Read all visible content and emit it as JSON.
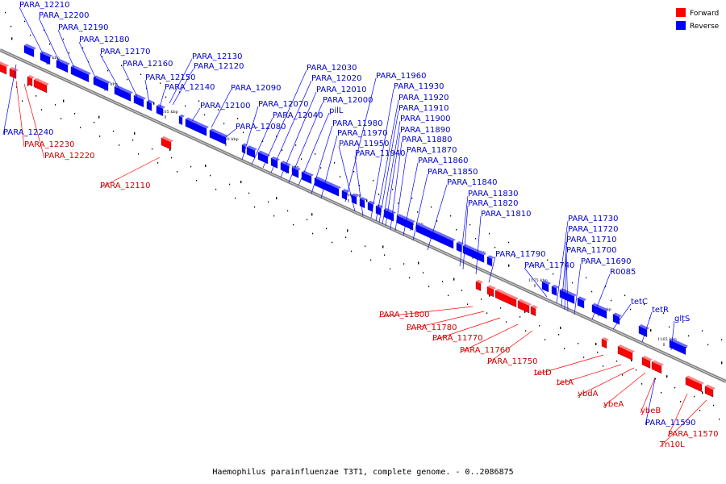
{
  "caption": "Haemophilus parainfluenzae T3T1, complete genome. - 0..2086875",
  "legend": [
    {
      "label": "Forward",
      "color": "#ff0000"
    },
    {
      "label": "Reverse",
      "color": "#0000ff"
    }
  ],
  "colors": {
    "forward": "#ff0000",
    "reverse": "#0000ff",
    "forward_label": "#cc0000",
    "reverse_label": "#0000cc",
    "backbone": "#808080"
  },
  "kbp_ticks": [
    "1215 kbp",
    "1210 kbp",
    "1205 kbp",
    "1200 kbp",
    "1195 kbp",
    "1190 kbp",
    "1185 kbp",
    "1180 kbp",
    "1175 kbp",
    "1170 kbp",
    "1165 kbp"
  ],
  "reverse_labels": [
    "PARA_12210",
    "PARA_12200",
    "PARA_12190",
    "PARA_12180",
    "PARA_12170",
    "PARA_12160",
    "PARA_12150",
    "PARA_12140",
    "PARA_12130",
    "PARA_12120",
    "PARA_12100",
    "PARA_12090",
    "PARA_12080",
    "PARA_12070",
    "PARA_12040",
    "PARA_12030",
    "PARA_12020",
    "PARA_12010",
    "PARA_12000",
    "pilL",
    "PARA_11980",
    "PARA_11970",
    "PARA_11960",
    "PARA_11950",
    "PARA_11940",
    "PARA_11930",
    "PARA_11920",
    "PARA_11910",
    "PARA_11900",
    "PARA_11890",
    "PARA_11880",
    "PARA_11870",
    "PARA_11860",
    "PARA_11850",
    "PARA_11840",
    "PARA_11830",
    "PARA_11820",
    "PARA_11810",
    "PARA_11790",
    "PARA_11740",
    "PARA_11730",
    "PARA_11720",
    "PARA_11710",
    "PARA_11700",
    "PARA_11690",
    "R0085",
    "tetC",
    "tetR",
    "gltS",
    "PARA_12240",
    "PARA_11590"
  ],
  "forward_labels": [
    "PARA_12230",
    "PARA_12220",
    "PARA_12110",
    "PARA_11800",
    "PARA_11780",
    "PARA_11770",
    "PARA_11760",
    "PARA_11750",
    "tetD",
    "tetA",
    "ybdA",
    "ybeA",
    "ybeB",
    "PARA_11570",
    "Tn10L"
  ]
}
